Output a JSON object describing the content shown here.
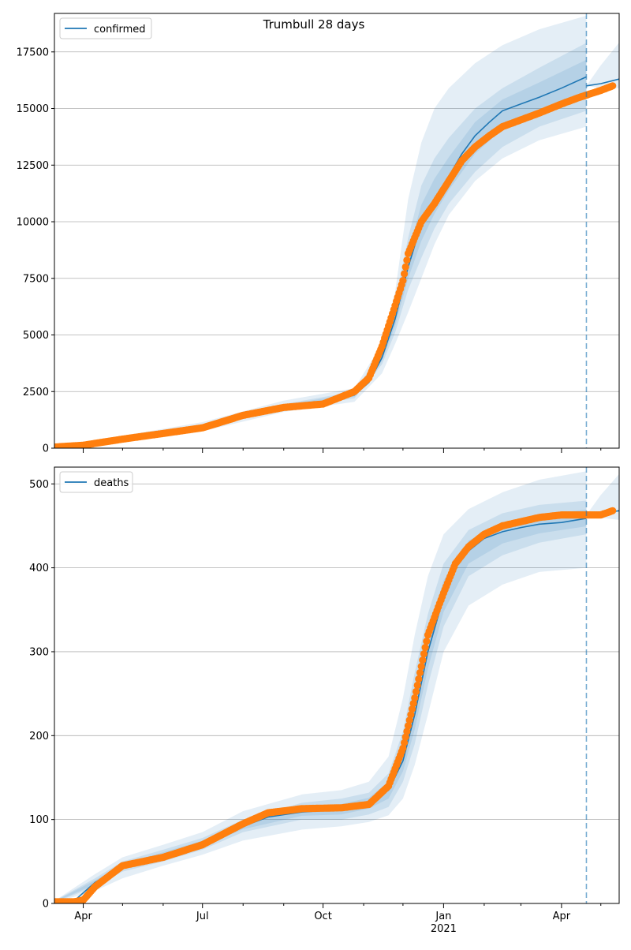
{
  "figure": {
    "title": "Trumbull 28 days"
  },
  "chart_data": [
    {
      "type": "line",
      "name": "confirmed-panel",
      "title": "Trumbull 28 days",
      "legend": {
        "label": "confirmed",
        "placement": "top-left"
      },
      "xlabel": "",
      "ylabel": "",
      "x_range": [
        "2020-03-10",
        "2021-05-15"
      ],
      "ylim": [
        0,
        19200
      ],
      "y_ticks": [
        0,
        2500,
        5000,
        7500,
        10000,
        12500,
        15000,
        17500
      ],
      "y_tick_labels": [
        "0",
        "2500",
        "5000",
        "7500",
        "10000",
        "12500",
        "15000",
        "17500"
      ],
      "grid": "horizontal",
      "forecast_start": "2021-04-20",
      "colors": {
        "model": "#1f77b4",
        "observed": "#ff7f0e",
        "band": "#1f77b4",
        "vline": "#1f77b4"
      },
      "model": {
        "x": [
          "2020-03-10",
          "2020-04-01",
          "2020-05-01",
          "2020-06-01",
          "2020-07-01",
          "2020-08-01",
          "2020-09-01",
          "2020-10-01",
          "2020-10-25",
          "2020-11-05",
          "2020-11-15",
          "2020-11-25",
          "2020-12-05",
          "2020-12-15",
          "2020-12-25",
          "2021-01-05",
          "2021-01-15",
          "2021-01-25",
          "2021-02-05",
          "2021-02-15",
          "2021-03-01",
          "2021-03-15",
          "2021-04-01",
          "2021-04-20"
        ],
        "y": [
          30,
          200,
          450,
          680,
          950,
          1500,
          1850,
          2000,
          2350,
          2900,
          4000,
          5700,
          8000,
          9900,
          11000,
          12000,
          13000,
          13800,
          14400,
          14900,
          15200,
          15500,
          15900,
          16400
        ]
      },
      "model_tail": {
        "x": [
          "2021-04-20",
          "2021-05-01",
          "2021-05-15"
        ],
        "y": [
          16000,
          16100,
          16300
        ]
      },
      "bands": {
        "x": [
          "2020-03-10",
          "2020-05-01",
          "2020-07-01",
          "2020-09-01",
          "2020-10-25",
          "2020-11-15",
          "2020-11-25",
          "2020-12-05",
          "2020-12-15",
          "2020-12-25",
          "2021-01-05",
          "2021-01-25",
          "2021-02-15",
          "2021-03-15",
          "2021-04-20"
        ],
        "outer_upper": [
          60,
          550,
          1150,
          2100,
          2650,
          4600,
          6900,
          11000,
          13500,
          15000,
          15900,
          17000,
          17800,
          18500,
          19100
        ],
        "outer_lower": [
          10,
          350,
          750,
          1600,
          2050,
          3300,
          4600,
          6000,
          7500,
          9000,
          10300,
          11800,
          12800,
          13600,
          14200
        ],
        "inner_upper": [
          40,
          500,
          1050,
          1950,
          2500,
          4300,
          6400,
          9300,
          11600,
          12800,
          13700,
          15000,
          15900,
          16800,
          17900
        ],
        "inner_lower": [
          20,
          400,
          850,
          1750,
          2200,
          3700,
          5100,
          7000,
          8400,
          9700,
          10800,
          12200,
          13300,
          14200,
          14900
        ]
      },
      "observed": {
        "x": [
          "2020-03-10",
          "2020-04-01",
          "2020-05-01",
          "2020-06-01",
          "2020-07-01",
          "2020-08-01",
          "2020-09-01",
          "2020-10-01",
          "2020-10-25",
          "2020-11-05",
          "2020-11-15",
          "2020-11-25",
          "2020-12-01",
          "2020-12-05",
          "2020-12-15",
          "2020-12-25",
          "2021-01-05",
          "2021-01-15",
          "2021-01-25",
          "2021-02-05",
          "2021-02-15",
          "2021-03-01",
          "2021-03-15",
          "2021-04-01",
          "2021-04-15",
          "2021-05-01",
          "2021-05-10"
        ],
        "y": [
          50,
          130,
          400,
          650,
          900,
          1450,
          1800,
          1950,
          2500,
          3100,
          4500,
          6300,
          7400,
          8600,
          10000,
          10800,
          11800,
          12700,
          13300,
          13800,
          14200,
          14500,
          14800,
          15200,
          15500,
          15800,
          16000
        ]
      }
    },
    {
      "type": "line",
      "name": "deaths-panel",
      "legend": {
        "label": "deaths",
        "placement": "top-left"
      },
      "xlabel": "",
      "ylabel": "",
      "x_range": [
        "2020-03-10",
        "2021-05-15"
      ],
      "ylim": [
        0,
        520
      ],
      "y_ticks": [
        0,
        100,
        200,
        300,
        400,
        500
      ],
      "y_tick_labels": [
        "0",
        "100",
        "200",
        "300",
        "400",
        "500"
      ],
      "x_ticks": [
        "2020-04-01",
        "2020-07-01",
        "2020-10-01",
        "2021-01-01",
        "2021-04-01"
      ],
      "x_tick_labels": [
        "Apr",
        "Jul",
        "Oct",
        "Jan",
        "Apr"
      ],
      "x_tick_sublabels": [
        "",
        "",
        "",
        "2021",
        ""
      ],
      "x_minor_ticks": [
        "2020-05-01",
        "2020-06-01",
        "2020-08-01",
        "2020-09-01",
        "2020-11-01",
        "2020-12-01",
        "2021-02-01",
        "2021-03-01",
        "2021-05-01"
      ],
      "grid": "horizontal",
      "forecast_start": "2021-04-20",
      "colors": {
        "model": "#1f77b4",
        "observed": "#ff7f0e",
        "band": "#1f77b4",
        "vline": "#1f77b4"
      },
      "model": {
        "x": [
          "2020-03-10",
          "2020-03-25",
          "2020-04-10",
          "2020-05-01",
          "2020-06-01",
          "2020-07-01",
          "2020-08-01",
          "2020-08-20",
          "2020-09-15",
          "2020-10-15",
          "2020-11-05",
          "2020-11-20",
          "2020-12-01",
          "2020-12-10",
          "2020-12-20",
          "2021-01-01",
          "2021-01-10",
          "2021-01-20",
          "2021-02-01",
          "2021-02-15",
          "2021-03-01",
          "2021-03-15",
          "2021-04-01",
          "2021-04-20"
        ],
        "y": [
          2,
          3,
          25,
          45,
          58,
          72,
          92,
          103,
          109,
          112,
          120,
          135,
          170,
          225,
          300,
          365,
          400,
          420,
          435,
          443,
          448,
          452,
          454,
          459
        ]
      },
      "model_tail": {
        "x": [
          "2021-04-20",
          "2021-05-01",
          "2021-05-15"
        ],
        "y": [
          463,
          465,
          468
        ]
      },
      "bands": {
        "x": [
          "2020-03-10",
          "2020-04-10",
          "2020-05-01",
          "2020-06-01",
          "2020-07-01",
          "2020-08-01",
          "2020-09-15",
          "2020-10-15",
          "2020-11-05",
          "2020-11-20",
          "2020-12-01",
          "2020-12-10",
          "2020-12-20",
          "2021-01-01",
          "2021-01-20",
          "2021-02-15",
          "2021-03-15",
          "2021-04-20"
        ],
        "outer_upper": [
          3,
          35,
          55,
          70,
          85,
          110,
          130,
          135,
          145,
          175,
          245,
          320,
          390,
          440,
          470,
          490,
          505,
          515
        ],
        "outer_lower": [
          1,
          15,
          30,
          45,
          58,
          75,
          88,
          92,
          97,
          105,
          125,
          165,
          225,
          300,
          355,
          380,
          395,
          400
        ],
        "inner_upper": [
          3,
          30,
          50,
          64,
          78,
          100,
          120,
          125,
          132,
          155,
          205,
          275,
          345,
          405,
          445,
          465,
          475,
          480
        ],
        "inner_lower": [
          1,
          20,
          38,
          50,
          64,
          85,
          100,
          100,
          106,
          115,
          145,
          190,
          260,
          330,
          390,
          415,
          430,
          440
        ]
      },
      "observed": {
        "x": [
          "2020-03-10",
          "2020-03-25",
          "2020-04-01",
          "2020-04-10",
          "2020-05-01",
          "2020-06-01",
          "2020-07-01",
          "2020-08-01",
          "2020-08-20",
          "2020-09-15",
          "2020-10-15",
          "2020-11-05",
          "2020-11-20",
          "2020-12-01",
          "2020-12-10",
          "2020-12-20",
          "2021-01-01",
          "2021-01-10",
          "2021-01-20",
          "2021-02-01",
          "2021-02-15",
          "2021-03-01",
          "2021-03-15",
          "2021-04-01",
          "2021-04-20",
          "2021-05-01",
          "2021-05-10"
        ],
        "y": [
          2,
          2,
          4,
          20,
          45,
          55,
          70,
          95,
          108,
          113,
          114,
          118,
          140,
          185,
          245,
          320,
          370,
          405,
          425,
          440,
          450,
          455,
          460,
          463,
          463,
          463,
          468
        ]
      }
    }
  ]
}
